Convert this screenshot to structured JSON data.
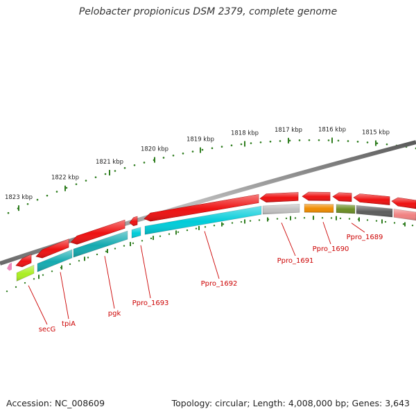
{
  "title": "Pelobacter propionicus DSM 2379, complete genome",
  "footer": {
    "accession": "Accession: NC_008609",
    "stats": "Topology: circular; Length: 4,008,000 bp; Genes: 3,643"
  },
  "colors": {
    "backbone": "#8a8a8a",
    "cds": "#ee1111",
    "tick": "#2e7d1e",
    "label": "#cc0000",
    "cyan": "#00ccd9",
    "teal": "#14aab0",
    "silver": "#c0c0c0",
    "orange": "#f08c00",
    "olive": "#6b8e23",
    "gray": "#5c5c5c",
    "salmon": "#f08080",
    "lime": "#aaee22",
    "pink": "#ee88bb"
  },
  "ruler": {
    "kbp_labels": [
      "1823 kbp",
      "1822 kbp",
      "1821 kbp",
      "1820 kbp",
      "1819 kbp",
      "1818 kbp",
      "1817 kbp",
      "1816 kbp",
      "1815 kbp"
    ]
  },
  "genes": [
    {
      "name": "secG",
      "color": "lime"
    },
    {
      "name": "tpiA",
      "color": "teal"
    },
    {
      "name": "pgk",
      "color": "teal"
    },
    {
      "name": "Ppro_1693",
      "color": "cyan"
    },
    {
      "name": "Ppro_1692",
      "color": "cyan"
    },
    {
      "name": "Ppro_1691",
      "color": "silver"
    },
    {
      "name": "Ppro_1690",
      "color": "orange"
    },
    {
      "name": "Ppro_1689",
      "color": "olive"
    }
  ]
}
